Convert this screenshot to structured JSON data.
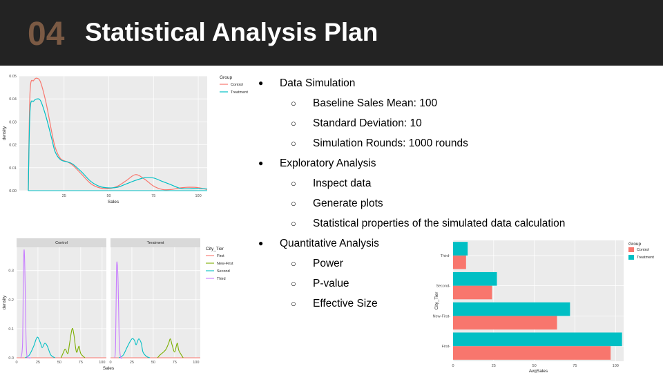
{
  "slide": {
    "number": "04",
    "title": "Statistical Analysis Plan"
  },
  "bullets": [
    {
      "level": 1,
      "text": "Data Simulation"
    },
    {
      "level": 2,
      "text": "Baseline Sales Mean: 100"
    },
    {
      "level": 2,
      "text": "Standard Deviation: 10"
    },
    {
      "level": 2,
      "text": "Simulation Rounds: 1000 rounds"
    },
    {
      "level": 1,
      "text": "Exploratory Analysis"
    },
    {
      "level": 2,
      "text": "Inspect data"
    },
    {
      "level": 2,
      "text": "Generate plots"
    },
    {
      "level": 2,
      "text": "Statistical properties of the simulated data calculation"
    },
    {
      "level": 1,
      "text": "Quantitative Analysis"
    },
    {
      "level": 2,
      "text": "Power"
    },
    {
      "level": 2,
      "text": "P-value"
    },
    {
      "level": 2,
      "text": "Effective Size"
    }
  ],
  "colors": {
    "control": "#f8766d",
    "treatment": "#00bfc4",
    "first": "#f8766d",
    "new_first": "#7cae00",
    "second": "#00bfc4",
    "third": "#c77cff",
    "panel_bg": "#ebebeb",
    "header_bg": "#232323",
    "number_color": "#7b5a44"
  },
  "chart_data": [
    {
      "type": "line",
      "xlabel": "Sales",
      "ylabel": "density",
      "xlim": [
        0,
        105
      ],
      "ylim": [
        0,
        0.05
      ],
      "xticks": [
        25,
        50,
        75,
        100
      ],
      "yticks": [
        0.0,
        0.01,
        0.02,
        0.03,
        0.04,
        0.05
      ],
      "ytick_labels": [
        "0.00",
        "0.01",
        "0.02",
        "0.03",
        "0.04",
        "0.05"
      ],
      "legend": {
        "title": "Group",
        "position": "right",
        "entries": [
          "Control",
          "Treatment"
        ]
      },
      "series": [
        {
          "name": "Control",
          "x": [
            5,
            6,
            8,
            10,
            12,
            15,
            18,
            20,
            23,
            27,
            30,
            35,
            40,
            45,
            50,
            55,
            60,
            65,
            70,
            75,
            80,
            85,
            90,
            95,
            100,
            105
          ],
          "y": [
            0,
            0.043,
            0.048,
            0.049,
            0.047,
            0.038,
            0.026,
            0.019,
            0.014,
            0.0125,
            0.011,
            0.007,
            0.003,
            0.0012,
            0.0009,
            0.002,
            0.0045,
            0.007,
            0.005,
            0.002,
            0.0005,
            0.0005,
            0.0012,
            0.0015,
            0.0013,
            0.0005
          ]
        },
        {
          "name": "Treatment",
          "x": [
            5,
            6,
            8,
            10,
            12,
            15,
            18,
            20,
            23,
            27,
            30,
            35,
            40,
            45,
            50,
            55,
            60,
            65,
            70,
            75,
            80,
            85,
            90,
            95,
            100,
            105
          ],
          "y": [
            0,
            0.035,
            0.039,
            0.04,
            0.039,
            0.032,
            0.023,
            0.017,
            0.0135,
            0.0125,
            0.0115,
            0.008,
            0.004,
            0.0018,
            0.0012,
            0.0015,
            0.003,
            0.0045,
            0.0056,
            0.0055,
            0.004,
            0.0025,
            0.001,
            0.0008,
            0.001,
            0.0007
          ]
        }
      ]
    },
    {
      "type": "line",
      "xlabel": "Sales",
      "ylabel": "density",
      "facets": [
        "Control",
        "Treatment"
      ],
      "xlim": [
        0,
        105
      ],
      "ylim": [
        0,
        0.38
      ],
      "xticks": [
        0,
        25,
        50,
        75,
        100
      ],
      "yticks": [
        0.0,
        0.1,
        0.2,
        0.3
      ],
      "ytick_labels": [
        "0.0",
        "0.1",
        "0.2",
        "0.3"
      ],
      "legend": {
        "title": "City_Tier",
        "position": "right",
        "entries": [
          "First",
          "New-First",
          "Second",
          "Third"
        ]
      },
      "panels": [
        {
          "facet": "Control",
          "series": [
            {
              "name": "First",
              "x": [
                0,
                105
              ],
              "y": [
                0,
                0
              ]
            },
            {
              "name": "New-First",
              "x": [
                52,
                55,
                57,
                60,
                62,
                65,
                67,
                70,
                73,
                75,
                80
              ],
              "y": [
                0,
                0.02,
                0.03,
                0.015,
                0.05,
                0.1,
                0.08,
                0.02,
                0.04,
                0.015,
                0
              ]
            },
            {
              "name": "Second",
              "x": [
                10,
                15,
                20,
                23,
                25,
                28,
                30,
                33,
                36,
                40,
                45
              ],
              "y": [
                0,
                0.01,
                0.04,
                0.065,
                0.07,
                0.05,
                0.035,
                0.05,
                0.04,
                0.01,
                0
              ]
            },
            {
              "name": "Third",
              "x": [
                5,
                7,
                8,
                9,
                10,
                11,
                12,
                14,
                17
              ],
              "y": [
                0,
                0.05,
                0.3,
                0.37,
                0.25,
                0.08,
                0.01,
                0,
                0
              ]
            }
          ]
        },
        {
          "facet": "Treatment",
          "series": [
            {
              "name": "First",
              "x": [
                0,
                105
              ],
              "y": [
                0,
                0
              ]
            },
            {
              "name": "New-First",
              "x": [
                55,
                58,
                62,
                65,
                68,
                70,
                72,
                75,
                78,
                80,
                85
              ],
              "y": [
                0,
                0.01,
                0.02,
                0.03,
                0.05,
                0.065,
                0.045,
                0.02,
                0.05,
                0.025,
                0
              ]
            },
            {
              "name": "Second",
              "x": [
                10,
                15,
                20,
                25,
                28,
                30,
                33,
                36,
                38,
                42,
                46
              ],
              "y": [
                0,
                0.01,
                0.04,
                0.065,
                0.06,
                0.045,
                0.065,
                0.05,
                0.02,
                0.005,
                0
              ]
            },
            {
              "name": "Third",
              "x": [
                5,
                6,
                7,
                8,
                9,
                10,
                11,
                12,
                14
              ],
              "y": [
                0,
                0.05,
                0.3,
                0.32,
                0.25,
                0.08,
                0.02,
                0,
                0
              ]
            }
          ]
        }
      ]
    },
    {
      "type": "bar",
      "orientation": "horizontal",
      "xlabel": "AvgSales",
      "ylabel": "City_Tier",
      "categories": [
        "First",
        "New-First",
        "Second",
        "Third"
      ],
      "xlim": [
        0,
        105
      ],
      "xticks": [
        0,
        25,
        50,
        75,
        100
      ],
      "legend": {
        "title": "Group",
        "position": "right",
        "entries": [
          "Control",
          "Treatment"
        ]
      },
      "series": [
        {
          "name": "Control",
          "values": [
            97,
            64,
            24,
            8
          ]
        },
        {
          "name": "Treatment",
          "values": [
            104,
            72,
            27,
            9
          ]
        }
      ]
    }
  ]
}
